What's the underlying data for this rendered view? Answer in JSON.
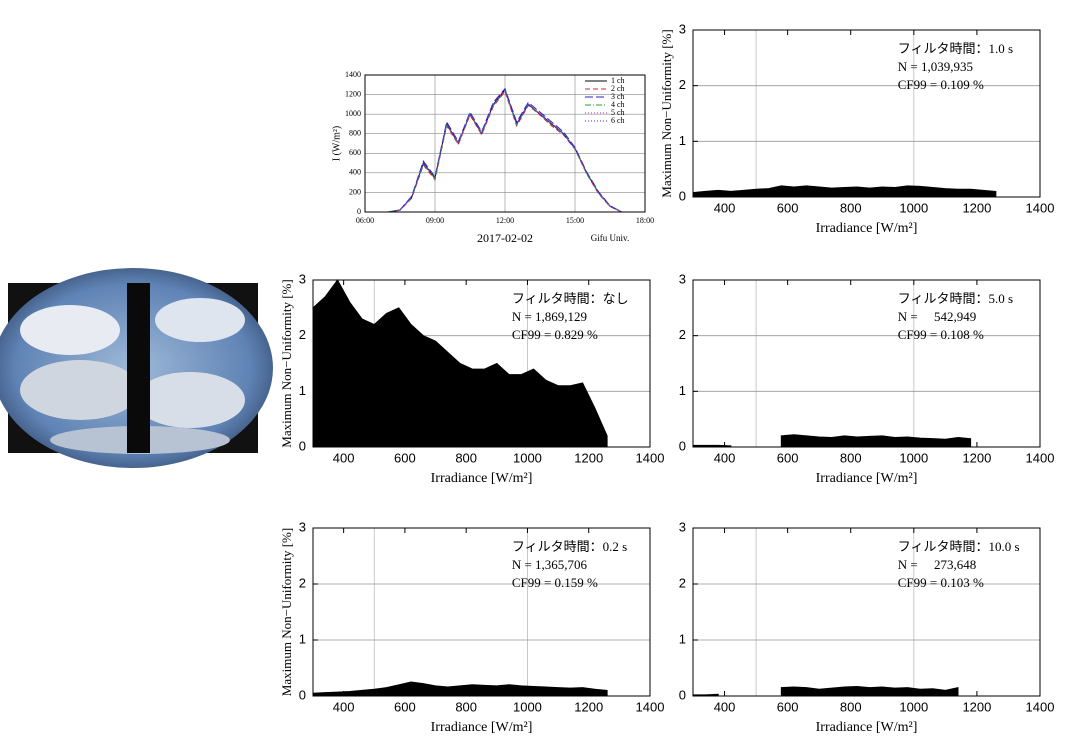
{
  "chart_data": [
    {
      "type": "line",
      "ylabel": "I (W/m²)",
      "xlabel": "2017-02-02",
      "note": "Gifu Univ.",
      "x": [
        7,
        7.5,
        8,
        8.5,
        9,
        9.5,
        10,
        10.5,
        11,
        11.5,
        12,
        12.5,
        13,
        13.5,
        14,
        14.5,
        15,
        15.5,
        16,
        16.5,
        17
      ],
      "xlim": [
        6,
        18
      ],
      "xticks": [
        {
          "value": 6,
          "label": "06:00"
        },
        {
          "value": 9,
          "label": "09:00"
        },
        {
          "value": 12,
          "label": "12:00"
        },
        {
          "value": 15,
          "label": "15:00"
        },
        {
          "value": 18,
          "label": "18:00"
        }
      ],
      "ylim": [
        0,
        1400
      ],
      "yticks": [
        0,
        200,
        400,
        600,
        800,
        1000,
        1200,
        1400
      ],
      "grid": true,
      "legend": "upper right",
      "series": [
        {
          "name": "1 ch",
          "color": "#000000",
          "dash": "solid",
          "values": [
            0,
            20,
            150,
            500,
            350,
            900,
            700,
            1000,
            800,
            1100,
            1250,
            900,
            1100,
            1000,
            900,
            800,
            650,
            400,
            200,
            60,
            0
          ]
        },
        {
          "name": "2 ch",
          "color": "#e02020",
          "dash": "dashed",
          "values": [
            0,
            18,
            140,
            480,
            330,
            880,
            690,
            990,
            790,
            1080,
            1230,
            880,
            1090,
            990,
            880,
            790,
            640,
            390,
            190,
            55,
            0
          ]
        },
        {
          "name": "3 ch",
          "color": "#2020d0",
          "dash": "longdash",
          "values": [
            0,
            22,
            160,
            520,
            360,
            920,
            720,
            1020,
            820,
            1120,
            1260,
            920,
            1120,
            1020,
            920,
            820,
            660,
            410,
            210,
            65,
            0
          ]
        },
        {
          "name": "4 ch",
          "color": "#20a040",
          "dash": "dashdot",
          "values": [
            0,
            19,
            145,
            490,
            340,
            890,
            700,
            1005,
            805,
            1090,
            1240,
            890,
            1100,
            995,
            890,
            805,
            645,
            395,
            195,
            58,
            0
          ]
        },
        {
          "name": "5 ch",
          "color": "#d020d0",
          "dash": "dotted",
          "values": [
            0,
            21,
            155,
            505,
            355,
            905,
            710,
            1010,
            810,
            1105,
            1245,
            905,
            1105,
            1005,
            905,
            810,
            655,
            405,
            205,
            62,
            0
          ]
        },
        {
          "name": "6 ch",
          "color": "#3030ff",
          "dash": "dotted",
          "values": [
            0,
            20,
            150,
            495,
            345,
            895,
            705,
            1000,
            800,
            1095,
            1235,
            895,
            1095,
            1000,
            895,
            800,
            650,
            400,
            200,
            60,
            0
          ]
        }
      ]
    },
    {
      "type": "area",
      "ylabel": "Maximum Non−Uniformity [%]",
      "xlabel": "Irradiance [W/m²]",
      "annotations": [
        "フィルタ時間：1.0 s",
        "N = 1,039,935",
        "CF99 = 0.109 %"
      ],
      "x": [
        300,
        340,
        380,
        420,
        460,
        500,
        540,
        580,
        620,
        660,
        700,
        740,
        780,
        820,
        860,
        900,
        940,
        980,
        1020,
        1060,
        1100,
        1140,
        1180,
        1220,
        1260
      ],
      "values": [
        0.08,
        0.1,
        0.12,
        0.1,
        0.12,
        0.14,
        0.15,
        0.2,
        0.18,
        0.2,
        0.18,
        0.16,
        0.17,
        0.18,
        0.16,
        0.18,
        0.17,
        0.2,
        0.19,
        0.17,
        0.15,
        0.14,
        0.14,
        0.12,
        0.1
      ],
      "color": "#000000",
      "xlim": [
        300,
        1400
      ],
      "xticks": [
        400,
        600,
        800,
        1000,
        1200,
        1400
      ],
      "ylim": [
        0,
        3
      ],
      "yticks": [
        0,
        1,
        2,
        3
      ],
      "xgrid": [
        500,
        1000
      ],
      "ygrid": [
        1,
        2
      ]
    },
    {
      "type": "area",
      "ylabel": "Maximum Non−Uniformity [%]",
      "xlabel": "Irradiance [W/m²]",
      "annotations": [
        "フィルタ時間：なし",
        "N = 1,869,129",
        "CF99 = 0.829 %"
      ],
      "x": [
        300,
        340,
        380,
        420,
        460,
        500,
        540,
        580,
        620,
        660,
        700,
        740,
        780,
        820,
        860,
        900,
        940,
        980,
        1020,
        1060,
        1100,
        1140,
        1180,
        1220,
        1260
      ],
      "values": [
        2.5,
        2.7,
        3.0,
        2.6,
        2.3,
        2.2,
        2.4,
        2.5,
        2.2,
        2.0,
        1.9,
        1.7,
        1.5,
        1.4,
        1.4,
        1.5,
        1.3,
        1.3,
        1.4,
        1.2,
        1.1,
        1.1,
        1.15,
        0.7,
        0.2
      ],
      "color": "#000000",
      "xlim": [
        300,
        1400
      ],
      "xticks": [
        400,
        600,
        800,
        1000,
        1200,
        1400
      ],
      "ylim": [
        0,
        3
      ],
      "yticks": [
        0,
        1,
        2,
        3
      ],
      "xgrid": [
        500,
        1000
      ],
      "ygrid": [
        1,
        2
      ]
    },
    {
      "type": "area",
      "xlabel": "Irradiance [W/m²]",
      "annotations": [
        "フィルタ時間：5.0 s",
        "N =     542,949",
        "CF99 = 0.108 %"
      ],
      "x": [
        300,
        340,
        380,
        420,
        460,
        500,
        540,
        580,
        620,
        660,
        700,
        740,
        780,
        820,
        860,
        900,
        940,
        980,
        1020,
        1060,
        1100,
        1140,
        1180,
        1220,
        1260
      ],
      "values": [
        0.03,
        0.03,
        0.03,
        0.02,
        null,
        null,
        null,
        0.2,
        0.22,
        0.2,
        0.18,
        0.17,
        0.2,
        0.18,
        0.19,
        0.2,
        0.17,
        0.18,
        0.16,
        0.15,
        0.14,
        0.17,
        0.15,
        null,
        null
      ],
      "color": "#000000",
      "xlim": [
        300,
        1400
      ],
      "xticks": [
        400,
        600,
        800,
        1000,
        1200,
        1400
      ],
      "ylim": [
        0,
        3
      ],
      "yticks": [
        0,
        1,
        2,
        3
      ],
      "xgrid": [
        500,
        1000
      ],
      "ygrid": [
        1,
        2
      ]
    },
    {
      "type": "area",
      "ylabel": "Maximum Non−Uniformity [%]",
      "xlabel": "Irradiance [W/m²]",
      "annotations": [
        "フィルタ時間：0.2 s",
        "N = 1,365,706",
        "CF99 = 0.159 %"
      ],
      "x": [
        300,
        340,
        380,
        420,
        460,
        500,
        540,
        580,
        620,
        660,
        700,
        740,
        780,
        820,
        860,
        900,
        940,
        980,
        1020,
        1060,
        1100,
        1140,
        1180,
        1220,
        1260
      ],
      "values": [
        0.05,
        0.06,
        0.07,
        0.08,
        0.1,
        0.12,
        0.15,
        0.2,
        0.25,
        0.22,
        0.18,
        0.16,
        0.18,
        0.2,
        0.19,
        0.18,
        0.2,
        0.18,
        0.17,
        0.16,
        0.15,
        0.14,
        0.15,
        0.12,
        0.1
      ],
      "color": "#000000",
      "xlim": [
        300,
        1400
      ],
      "xticks": [
        400,
        600,
        800,
        1000,
        1200,
        1400
      ],
      "ylim": [
        0,
        3
      ],
      "yticks": [
        0,
        1,
        2,
        3
      ],
      "xgrid": [
        500,
        1000
      ],
      "ygrid": [
        1,
        2
      ]
    },
    {
      "type": "area",
      "xlabel": "Irradiance [W/m²]",
      "annotations": [
        "フィルタ時間：10.0 s",
        "N =     273,648",
        "CF99 = 0.103 %"
      ],
      "x": [
        300,
        340,
        380,
        420,
        460,
        500,
        540,
        580,
        620,
        660,
        700,
        740,
        780,
        820,
        860,
        900,
        940,
        980,
        1020,
        1060,
        1100,
        1140,
        1180,
        1220,
        1260
      ],
      "values": [
        0.02,
        0.02,
        0.03,
        null,
        null,
        null,
        null,
        0.15,
        0.16,
        0.15,
        0.12,
        0.14,
        0.16,
        0.17,
        0.15,
        0.16,
        0.14,
        0.15,
        0.12,
        0.13,
        0.1,
        0.15,
        null,
        null,
        null
      ],
      "color": "#000000",
      "xlim": [
        300,
        1400
      ],
      "xticks": [
        400,
        600,
        800,
        1000,
        1200,
        1400
      ],
      "ylim": [
        0,
        3
      ],
      "yticks": [
        0,
        1,
        2,
        3
      ],
      "xgrid": [
        500,
        1000
      ],
      "ygrid": [
        1,
        2
      ]
    }
  ]
}
